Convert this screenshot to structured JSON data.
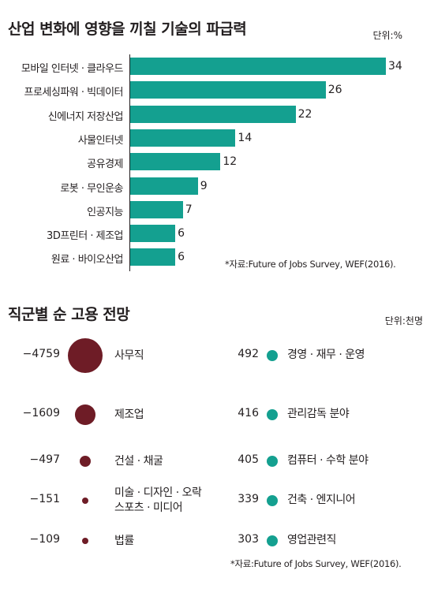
{
  "chart_data": [
    {
      "type": "bar",
      "orientation": "horizontal",
      "title": "산업 변화에 영향을 끼칠 기술의 파급력",
      "unit": "단위:%",
      "categories": [
        "모바일 인터넷 · 클라우드",
        "프로세싱파워 · 빅데이터",
        "신에너지 저장산업",
        "사물인터넷",
        "공유경제",
        "로봇 · 무인운송",
        "인공지능",
        "3D프린터 · 제조업",
        "원료 · 바이오산업"
      ],
      "values": [
        34,
        26,
        22,
        14,
        12,
        9,
        7,
        6,
        6
      ],
      "source": "*자료:Future of Jobs Survey, WEF(2016).",
      "grid": false,
      "colors": {
        "bar": "#14a090"
      }
    },
    {
      "type": "scatter",
      "subtype": "bubble",
      "title": "직군별 순 고용 전망",
      "unit": "단위:천명",
      "series": [
        {
          "items": [
            {
              "label": "사무직",
              "value": -4759
            },
            {
              "label": "제조업",
              "value": -1609
            },
            {
              "label": "건설 · 채굴",
              "value": -497
            },
            {
              "label": "미술 · 디자인 · 오락 스포츠 · 미디어",
              "value": -151
            },
            {
              "label": "법률",
              "value": -109
            }
          ],
          "color": "#6e1c26"
        },
        {
          "items": [
            {
              "label": "경영 · 재무 · 운영",
              "value": 492
            },
            {
              "label": "관리감독 분야",
              "value": 416
            },
            {
              "label": "컴퓨터 · 수학 분야",
              "value": 405
            },
            {
              "label": "건축 · 엔지니어",
              "value": 339
            },
            {
              "label": "영업관련직",
              "value": 303
            }
          ],
          "color": "#14a090"
        }
      ],
      "value_labels": {
        "negative": [
          "−4759",
          "−1609",
          "−497",
          "−151",
          "−109"
        ],
        "positive": [
          "492",
          "416",
          "405",
          "339",
          "303"
        ]
      },
      "negative_label_lines": [
        [
          "사무직"
        ],
        [
          "제조업"
        ],
        [
          "건설 · 채굴"
        ],
        [
          "미술 · 디자인 · 오락",
          "스포츠 · 미디어"
        ],
        [
          "법률"
        ]
      ],
      "source": "*자료:Future of Jobs Survey, WEF(2016)."
    }
  ]
}
